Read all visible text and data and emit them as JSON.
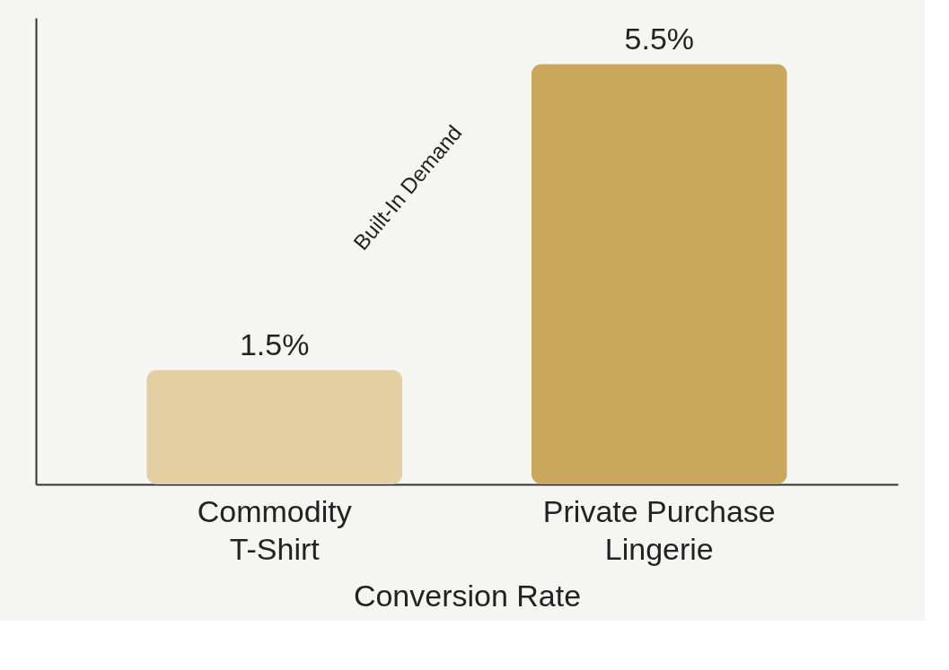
{
  "chart_data": {
    "type": "bar",
    "xlabel": "Conversion Rate",
    "categories": [
      "Commodity T-Shirt",
      "Private Purchase Lingerie"
    ],
    "values": [
      1.5,
      5.5
    ],
    "colors": [
      "#e3cfa2",
      "#c9a75c"
    ],
    "value_labels": [
      "1.5%",
      "5.5%"
    ],
    "ylim": [
      0,
      6.1
    ],
    "annotations": [
      "Built-In Demand"
    ],
    "grid": false
  }
}
